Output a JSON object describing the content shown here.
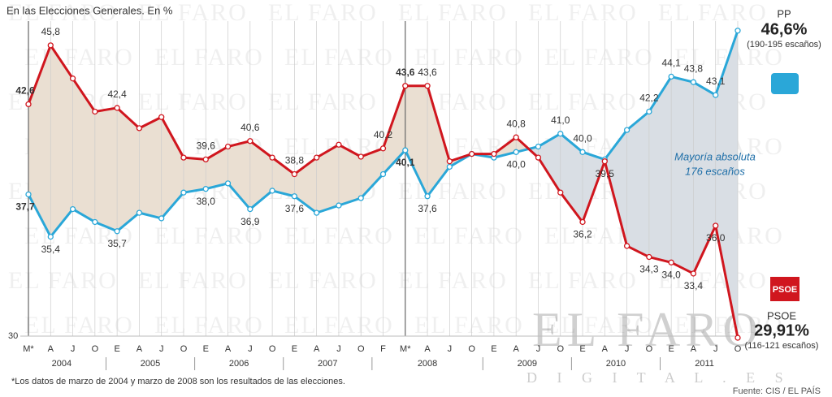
{
  "chart_data": {
    "type": "line",
    "title": "En las Elecciones Generales. En %",
    "categories": [
      "M*",
      "A",
      "J",
      "O",
      "E",
      "A",
      "J",
      "O",
      "E",
      "A",
      "J",
      "O",
      "E",
      "A",
      "J",
      "O",
      "F",
      "M*",
      "A",
      "J",
      "O",
      "E",
      "A",
      "J",
      "O",
      "E",
      "A",
      "J",
      "O",
      "E",
      "A",
      "J",
      "O"
    ],
    "years": [
      "2004",
      "2005",
      "2006",
      "2007",
      "2008",
      "2009",
      "2010",
      "2011"
    ],
    "series": [
      {
        "name": "PP",
        "color": "#2aa7d8",
        "note": "(190-195 escaños)",
        "values": [
          37.7,
          35.4,
          36.9,
          36.2,
          35.7,
          36.7,
          36.4,
          37.8,
          38.0,
          38.3,
          36.9,
          37.9,
          37.6,
          36.7,
          37.1,
          37.5,
          38.8,
          40.1,
          37.6,
          39.2,
          39.9,
          39.7,
          40.0,
          40.3,
          41.0,
          40.0,
          39.6,
          41.2,
          42.2,
          44.1,
          43.8,
          43.1,
          46.6
        ],
        "value_labels": [
          "37,7",
          "35,4",
          null,
          null,
          "35,7",
          null,
          null,
          null,
          "38,0",
          null,
          "36,9",
          null,
          "37,6",
          null,
          null,
          null,
          null,
          "40,1",
          "37,6",
          null,
          null,
          null,
          "40,0",
          null,
          "41,0",
          "40,0",
          null,
          null,
          "42,2",
          "44,1",
          "43,8",
          "43,1",
          "46,6%"
        ]
      },
      {
        "name": "PSOE",
        "color": "#d0161e",
        "note": "(116-121 escaños)",
        "values": [
          42.6,
          45.8,
          44.0,
          42.2,
          42.4,
          41.3,
          41.9,
          39.7,
          39.6,
          40.3,
          40.6,
          39.7,
          38.8,
          39.7,
          40.4,
          39.75,
          40.2,
          43.6,
          43.6,
          39.5,
          39.9,
          39.9,
          40.8,
          39.7,
          37.8,
          36.2,
          39.5,
          34.9,
          34.3,
          34.0,
          33.4,
          36.0,
          29.91
        ],
        "value_labels": [
          "42,6",
          "45,8",
          null,
          null,
          "42,4",
          null,
          null,
          null,
          "39,6",
          null,
          "40,6",
          null,
          "38,8",
          null,
          null,
          null,
          "40,2",
          "43,6",
          "43,6",
          null,
          null,
          null,
          "40,8",
          null,
          null,
          "36,2",
          "39,5",
          null,
          "34,3",
          "34,0",
          "33,4",
          "36,0",
          "29,91%"
        ]
      }
    ],
    "ylim": [
      30,
      48
    ],
    "yticks": [
      30
    ],
    "grid": true,
    "annotation": [
      "Mayoría absoluta",
      "176 escaños"
    ],
    "footnote": "*Los datos de marzo de 2004  y marzo de 2008 son los resultados de las elecciones.",
    "source": "Fuente: CIS / EL PAÍS",
    "watermark": "EL FARO",
    "watermark_sub": "D I G I T A L . E S"
  }
}
